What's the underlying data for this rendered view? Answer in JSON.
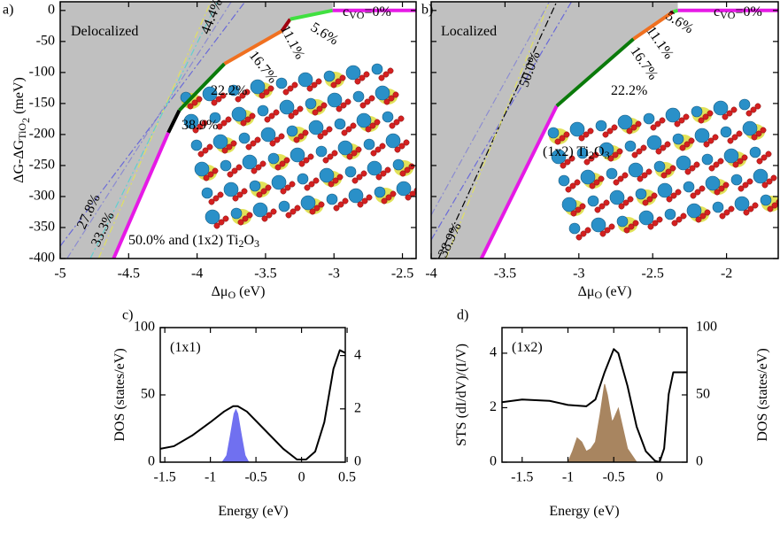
{
  "chart_data": [
    {
      "type": "line",
      "panel": "a)",
      "xlim": [
        -5,
        -2.4
      ],
      "ylim": [
        -400,
        14
      ],
      "xticks": [
        -5,
        -4.5,
        -4,
        -3.5,
        -3,
        -2.5
      ],
      "yticks": [
        0,
        -50,
        -100,
        -150,
        -200,
        -250,
        -300,
        -350,
        -400
      ],
      "xlabel": [
        {
          "text": "Δμ"
        },
        {
          "text": "O",
          "sub": 1
        },
        {
          "text": " (eV)"
        }
      ],
      "ylabel": [
        {
          "text": "ΔG-ΔG"
        },
        {
          "text": "TiO",
          "sub": 1
        },
        {
          "text": "2",
          "sub": 2
        },
        {
          "text": " (meV)"
        }
      ],
      "shade_color": "#c0c0c0",
      "series": [
        {
          "color": "#6a6ad8",
          "dash": true,
          "x": [
            -5,
            -3.65
          ],
          "values": [
            -380,
            14
          ]
        },
        {
          "color": "#8c8cd0",
          "dash": true,
          "x": [
            -4.95,
            -3.75
          ],
          "values": [
            -400,
            14
          ]
        },
        {
          "color": "#e0e060",
          "dash": true,
          "x": [
            -4.72,
            -3.9
          ],
          "values": [
            -400,
            14
          ]
        },
        {
          "color": "#60d0d0",
          "dash": true,
          "x": [
            -4.78,
            -3.85
          ],
          "values": [
            -400,
            14
          ]
        },
        {
          "color": "#e619e6",
          "x": [
            -4.61,
            -4.21
          ],
          "values": [
            -400,
            -197
          ]
        },
        {
          "color": "#000000",
          "x": [
            -4.21,
            -4.13
          ],
          "values": [
            -197,
            -161
          ]
        },
        {
          "color": "#0a7a0a",
          "x": [
            -4.13,
            -3.8
          ],
          "values": [
            -161,
            -86
          ]
        },
        {
          "color": "#f07020",
          "x": [
            -3.8,
            -3.38
          ],
          "values": [
            -86,
            -33
          ]
        },
        {
          "color": "#a00010",
          "x": [
            -3.38,
            -3.32
          ],
          "values": [
            -33,
            -14
          ]
        },
        {
          "color": "#40e040",
          "x": [
            -3.32,
            -3.01
          ],
          "values": [
            -14,
            0
          ]
        },
        {
          "color": "#e619e6",
          "x": [
            -3.01,
            -2.4
          ],
          "values": [
            0,
            0
          ]
        }
      ],
      "annotations": [
        [
          {
            "text": "Delocalized"
          }
        ],
        [
          {
            "text": "44.4%"
          }
        ],
        [
          {
            "text": "11.1%"
          }
        ],
        [
          {
            "text": "5.6%"
          }
        ],
        [
          {
            "text": "16.7%"
          }
        ],
        [
          {
            "text": "22.2%"
          }
        ],
        [
          {
            "text": "38.9%"
          }
        ],
        [
          {
            "text": "27.8%"
          }
        ],
        [
          {
            "text": "33.3%"
          }
        ],
        [
          {
            "text": "50.0% and (1x2) Ti"
          },
          {
            "text": "2",
            "sub": 1
          },
          {
            "text": "O"
          },
          {
            "text": "3",
            "sub": 1
          }
        ],
        [
          {
            "text": "c"
          },
          {
            "text": "VO",
            "sub": 1
          },
          {
            "text": "=0%"
          }
        ]
      ]
    },
    {
      "type": "line",
      "panel": "b)",
      "xlim": [
        -4,
        -1.65
      ],
      "ylim": [
        -400,
        14
      ],
      "xticks": [
        -4,
        -3.5,
        -3,
        -2.5,
        -2
      ],
      "yticks": [
        0,
        -50,
        -100,
        -150,
        -200,
        -250,
        -300,
        -350,
        -400
      ],
      "ytick_labels": false,
      "xlabel": [
        {
          "text": "Δμ"
        },
        {
          "text": "O",
          "sub": 1
        },
        {
          "text": " (eV)"
        }
      ],
      "shade_color": "#c0c0c0",
      "series": [
        {
          "color": "#6a6ad8",
          "dash": true,
          "x": [
            -4,
            -3.05
          ],
          "values": [
            -370,
            14
          ]
        },
        {
          "color": "#000000",
          "dash": true,
          "x": [
            -3.95,
            -3.15
          ],
          "values": [
            -400,
            14
          ]
        },
        {
          "color": "#e0e060",
          "dash": true,
          "x": [
            -3.9,
            -3.2
          ],
          "values": [
            -400,
            14
          ]
        },
        {
          "color": "#8c8cd0",
          "dash": true,
          "x": [
            -4,
            -3.2
          ],
          "values": [
            -330,
            14
          ]
        },
        {
          "color": "#e619e6",
          "x": [
            -3.66,
            -3.15
          ],
          "values": [
            -400,
            -154
          ]
        },
        {
          "color": "#0a7a0a",
          "x": [
            -3.15,
            -2.63
          ],
          "values": [
            -154,
            -46
          ]
        },
        {
          "color": "#f07020",
          "x": [
            -2.63,
            -2.38
          ],
          "values": [
            -46,
            -5
          ]
        },
        {
          "color": "#a00010",
          "x": [
            -2.38,
            -2.36
          ],
          "values": [
            -5,
            -2
          ]
        },
        {
          "color": "#40e040",
          "x": [
            -2.36,
            -2.33
          ],
          "values": [
            -2,
            0
          ]
        },
        {
          "color": "#e619e6",
          "x": [
            -2.33,
            -1.65
          ],
          "values": [
            0,
            0
          ]
        }
      ],
      "annotations": [
        [
          {
            "text": "Localized"
          }
        ],
        [
          {
            "text": "50.0%"
          }
        ],
        [
          {
            "text": "22.2%"
          }
        ],
        [
          {
            "text": "16.7%"
          }
        ],
        [
          {
            "text": "11.1%"
          }
        ],
        [
          {
            "text": "5.6%"
          }
        ],
        [
          {
            "text": "38.9%"
          }
        ],
        [
          {
            "text": "(1x2) Ti"
          },
          {
            "text": "2",
            "sub": 1
          },
          {
            "text": "O"
          },
          {
            "text": "3",
            "sub": 1
          }
        ],
        [
          {
            "text": "c"
          },
          {
            "text": "VO",
            "sub": 1
          },
          {
            "text": "=0%"
          }
        ]
      ]
    },
    {
      "type": "line",
      "panel": "c)",
      "xlim": [
        -1.55,
        0.48
      ],
      "ylim": [
        0,
        100
      ],
      "y2lim": [
        0,
        5.05
      ],
      "xticks": [
        -1.5,
        -1,
        -0.5,
        0,
        0.5
      ],
      "yticks": [
        0,
        50,
        100
      ],
      "y2ticks": [
        0,
        2,
        4
      ],
      "ycolor": "#3a3aff",
      "xlabel": [
        {
          "text": "Energy (eV)"
        }
      ],
      "ylabel": [
        {
          "text": "DOS (states/eV)"
        }
      ],
      "series": [
        {
          "color": "#7070f0",
          "fill": true,
          "x": [
            -0.87,
            -0.82,
            -0.78,
            -0.74,
            -0.72,
            -0.7,
            -0.66,
            -0.62,
            -0.58
          ],
          "values": [
            0,
            5,
            20,
            36,
            39,
            36,
            20,
            5,
            0
          ]
        },
        {
          "color": "#000000",
          "axis": "y2",
          "x": [
            -1.55,
            -1.4,
            -1.2,
            -1.0,
            -0.85,
            -0.75,
            -0.7,
            -0.6,
            -0.4,
            -0.2,
            -0.05,
            0.05,
            0.15,
            0.25,
            0.35,
            0.42,
            0.48
          ],
          "values": [
            0.5,
            0.6,
            1.0,
            1.5,
            1.9,
            2.1,
            2.1,
            1.9,
            1.2,
            0.5,
            0.1,
            0.1,
            0.4,
            1.5,
            3.5,
            4.2,
            4.1
          ]
        }
      ],
      "annotations": [
        [
          {
            "text": "(1x1)"
          }
        ]
      ]
    },
    {
      "type": "line",
      "panel": "d)",
      "xlim": [
        -1.72,
        0.3
      ],
      "ylim": [
        0,
        4.94
      ],
      "y2lim": [
        0,
        100
      ],
      "xticks": [
        -1.5,
        -1,
        -0.5,
        0
      ],
      "yticks": [
        0,
        2,
        4
      ],
      "y2ticks": [
        0,
        50,
        100
      ],
      "y2color": "#8b5a2b",
      "xlabel": [
        {
          "text": "Energy (eV)"
        }
      ],
      "ylabel": [
        {
          "text": "STS (dI/dV)/(I/V)"
        }
      ],
      "y2label": [
        {
          "text": "DOS (states/eV)"
        }
      ],
      "series": [
        {
          "color": "#a88560",
          "fill": true,
          "axis": "y2",
          "x": [
            -1.0,
            -0.95,
            -0.9,
            -0.85,
            -0.8,
            -0.75,
            -0.7,
            -0.65,
            -0.6,
            -0.57,
            -0.52,
            -0.5,
            -0.45,
            -0.4,
            -0.35,
            -0.3,
            -0.25
          ],
          "values": [
            0,
            8,
            18,
            15,
            8,
            10,
            15,
            35,
            58,
            50,
            30,
            32,
            40,
            25,
            10,
            5,
            0
          ]
        },
        {
          "color": "#000000",
          "x": [
            -1.72,
            -1.5,
            -1.2,
            -1.0,
            -0.8,
            -0.7,
            -0.6,
            -0.5,
            -0.45,
            -0.35,
            -0.25,
            -0.15,
            -0.05,
            0.0,
            0.05,
            0.1,
            0.15,
            0.3
          ],
          "values": [
            2.2,
            2.3,
            2.25,
            2.1,
            2.05,
            2.3,
            3.3,
            4.15,
            4.0,
            2.8,
            1.3,
            0.4,
            0.05,
            0.0,
            0.5,
            2.5,
            3.3,
            3.3
          ]
        }
      ],
      "annotations": [
        [
          {
            "text": "(1x2)"
          }
        ]
      ]
    }
  ]
}
